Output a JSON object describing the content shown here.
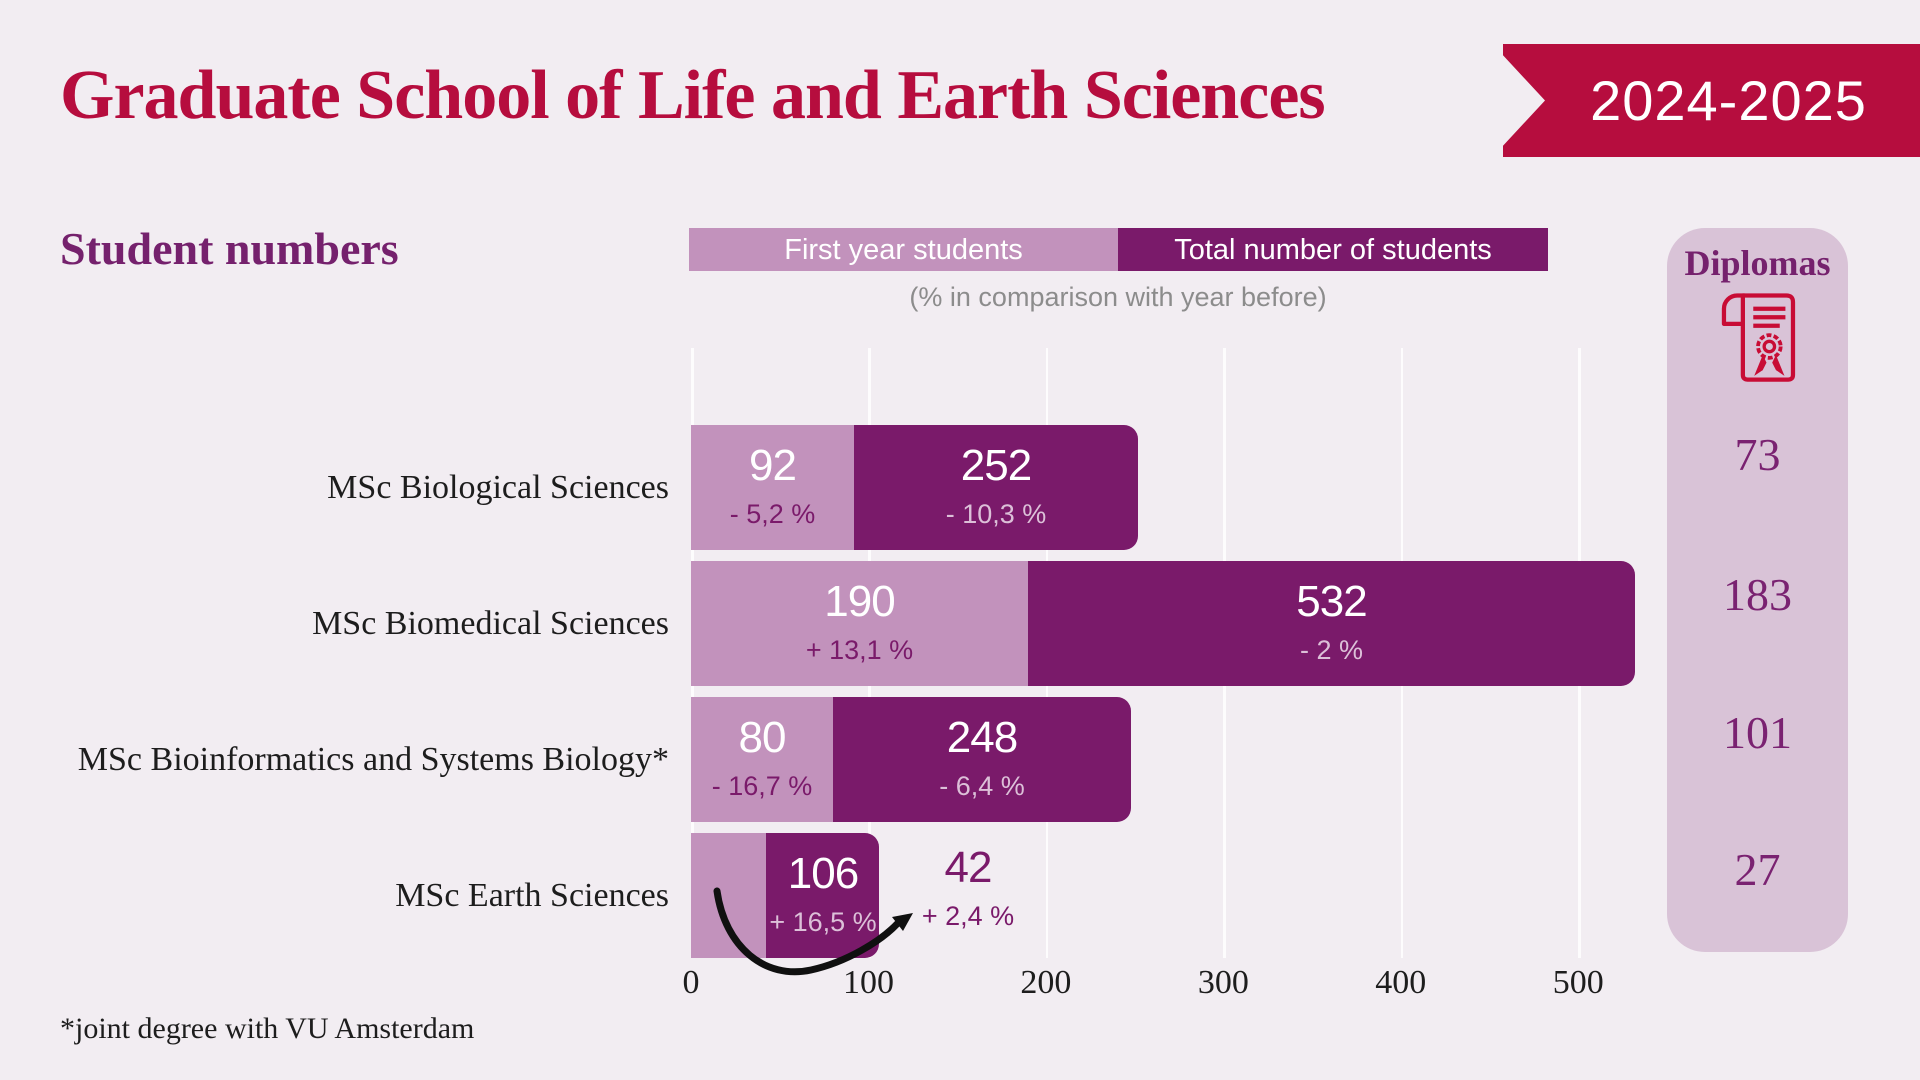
{
  "header": {
    "title": "Graduate School of Life and Earth Sciences",
    "badge": "2024-2025"
  },
  "section": {
    "heading": "Student numbers",
    "subtitle": "(% in comparison with year before)"
  },
  "legend": {
    "first_year_label": "First year students",
    "total_label": "Total number of students"
  },
  "chart_data": {
    "type": "bar",
    "orientation": "horizontal",
    "xlim": [
      0,
      535
    ],
    "x_ticks": [
      0,
      100,
      200,
      300,
      400,
      500
    ],
    "grid": true,
    "legend_position": "top",
    "series": [
      "First year students",
      "Total number of students"
    ],
    "rows": [
      {
        "label": "MSc Biological Sciences",
        "first_year": 92,
        "first_year_change": "- 5,2 %",
        "total": 252,
        "total_change": "- 10,3 %"
      },
      {
        "label": "MSc Biomedical Sciences",
        "first_year": 190,
        "first_year_change": "+ 13,1 %",
        "total": 532,
        "total_change": "- 2 %"
      },
      {
        "label": "MSc Bioinformatics and Systems Biology*",
        "first_year": 80,
        "first_year_change": "- 16,7 %",
        "total": 248,
        "total_change": "- 6,4 %"
      },
      {
        "label": "MSc Earth Sciences",
        "first_year": 42,
        "first_year_change": "+ 2,4 %",
        "total": 106,
        "total_change": "+ 16,5 %",
        "first_year_label_outside": true
      }
    ]
  },
  "diplomas": {
    "title": "Diplomas",
    "icon": "certificate-icon",
    "values": [
      73,
      183,
      101,
      27
    ]
  },
  "footnote": "*joint degree with VU Amsterdam",
  "colors": {
    "background": "#f2edf2",
    "crimson": "#b60d3e",
    "purple_dark": "#7a1a6a",
    "purple_heading": "#75216d",
    "mauve_light": "#c292bc",
    "panel_bg": "#d9c3d7",
    "pct_on_dark": "#dcc0d8",
    "subtitle_gray": "#8c8c8c",
    "ink": "#1d1d1d"
  }
}
